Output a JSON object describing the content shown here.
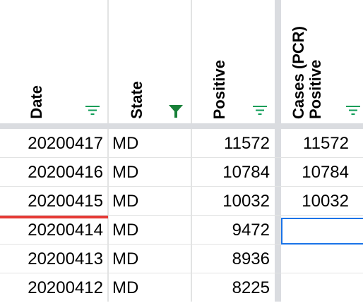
{
  "columns": [
    {
      "label_lines": [
        "Date"
      ],
      "filter": "inactive"
    },
    {
      "label_lines": [
        "State"
      ],
      "filter": "active"
    },
    {
      "label_lines": [
        "Positive"
      ],
      "filter": "inactive"
    },
    {
      "label_lines": [
        "Positive",
        "Cases (PCR)"
      ],
      "filter": "inactive"
    }
  ],
  "rows": [
    {
      "date": "20200417",
      "state": "MD",
      "positive": "11572",
      "positive_pcr": "11572"
    },
    {
      "date": "20200416",
      "state": "MD",
      "positive": "10784",
      "positive_pcr": "10784"
    },
    {
      "date": "20200415",
      "state": "MD",
      "positive": "10032",
      "positive_pcr": "10032"
    },
    {
      "date": "20200414",
      "state": "MD",
      "positive": "9472",
      "positive_pcr": ""
    },
    {
      "date": "20200413",
      "state": "MD",
      "positive": "8936",
      "positive_pcr": ""
    },
    {
      "date": "20200412",
      "state": "MD",
      "positive": "8225",
      "positive_pcr": ""
    }
  ],
  "colors": {
    "filter_icon": "#0f9d58",
    "active_filter": "#188038",
    "selection": "#1a73e8",
    "highlight_line": "#e53935",
    "gridline": "#e2e3e3",
    "freeze_bar": "#dadce0"
  }
}
